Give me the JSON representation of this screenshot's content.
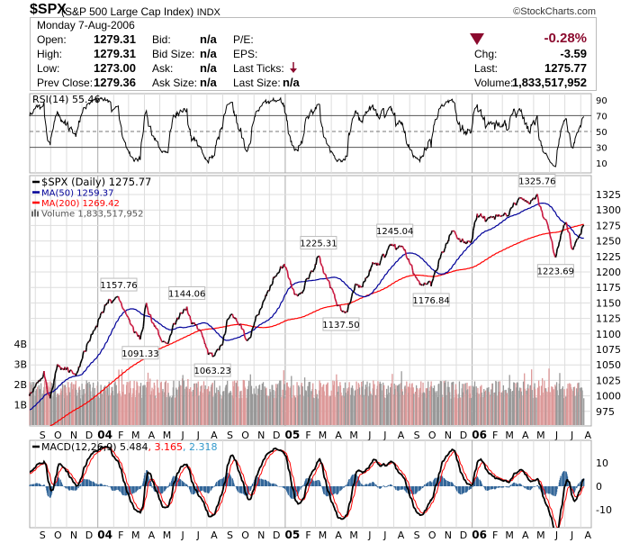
{
  "header": {
    "symbol": "$SPX",
    "name": "(S&P 500 Large Cap Index)",
    "exchange": "INDX",
    "copyright": "©StockCharts.com",
    "date": "Monday  7-Aug-2006",
    "open_label": "Open:",
    "open": "1279.31",
    "high_label": "High:",
    "high": "1279.31",
    "low_label": "Low:",
    "low": "1273.00",
    "prev_label": "Prev Close:",
    "prev": "1279.36",
    "bid_label": "Bid:",
    "bid": "n/a",
    "bidsize_label": "Bid Size:",
    "bidsize": "n/a",
    "ask_label": "Ask:",
    "ask": "n/a",
    "asksize_label": "Ask Size:",
    "asksize": "n/a",
    "pe_label": "P/E:",
    "eps_label": "EPS:",
    "ticks_label": "Last Ticks:",
    "lastsize_label": "Last Size:",
    "lastsize": "n/a",
    "pct_change": "-0.28%",
    "chg_label": "Chg:",
    "chg": "-3.59",
    "last_label": "Last:",
    "last": "1275.77",
    "volume_label": "Volume:",
    "volume": "1,833,517,952",
    "down_color": "#8b0a2e"
  },
  "chart_data": [
    {
      "type": "line",
      "panel": "RSI",
      "label": "RSI(14) 55.46",
      "y_ticks": [
        90,
        70,
        50,
        30,
        10
      ],
      "ylim": [
        0,
        100
      ]
    },
    {
      "type": "line",
      "panel": "price",
      "legend": [
        {
          "label": "$SPX (Daily) 1275.77",
          "color": "#000000"
        },
        {
          "label": "MA(50) 1259.37",
          "color": "#000099"
        },
        {
          "label": "MA(200) 1269.42",
          "color": "#ff0000"
        },
        {
          "label": "Volume 1,833,517,952",
          "color": "#888888"
        }
      ],
      "price_keypoints": [
        [
          "2003-08-21",
          1000
        ],
        [
          "2003-09-18",
          1040
        ],
        [
          "2003-09-30",
          996
        ],
        [
          "2003-10-15",
          1050
        ],
        [
          "2003-11-20",
          1035
        ],
        [
          "2003-12-31",
          1111
        ],
        [
          "2004-01-26",
          1155
        ],
        [
          "2004-02-11",
          1157.76
        ],
        [
          "2004-03-24",
          1091.33
        ],
        [
          "2004-04-05",
          1150
        ],
        [
          "2004-05-17",
          1084
        ],
        [
          "2004-06-23",
          1144.06
        ],
        [
          "2004-08-12",
          1063.23
        ],
        [
          "2004-09-10",
          1123
        ],
        [
          "2004-10-25",
          1094
        ],
        [
          "2004-12-30",
          1213
        ],
        [
          "2005-01-24",
          1163
        ],
        [
          "2005-03-07",
          1225.31
        ],
        [
          "2005-04-20",
          1137.5
        ],
        [
          "2005-06-22",
          1213
        ],
        [
          "2005-08-03",
          1245.04
        ],
        [
          "2005-10-13",
          1176.84
        ],
        [
          "2005-11-22",
          1265
        ],
        [
          "2005-12-30",
          1248
        ],
        [
          "2006-01-11",
          1294
        ],
        [
          "2006-02-24",
          1290
        ],
        [
          "2006-04-21",
          1311
        ],
        [
          "2006-05-08",
          1325.76
        ],
        [
          "2006-06-13",
          1223.69
        ],
        [
          "2006-07-03",
          1280
        ],
        [
          "2006-07-17",
          1236
        ],
        [
          "2006-08-07",
          1275.77
        ]
      ],
      "annotations": [
        {
          "date": "2004-02-11",
          "value": 1157.76,
          "label": "1157.76",
          "pos": "above"
        },
        {
          "date": "2004-03-24",
          "value": 1091.33,
          "label": "1091.33",
          "pos": "below"
        },
        {
          "date": "2004-06-23",
          "value": 1144.06,
          "label": "1144.06",
          "pos": "above"
        },
        {
          "date": "2004-08-12",
          "value": 1063.23,
          "label": "1063.23",
          "pos": "below"
        },
        {
          "date": "2005-03-07",
          "value": 1225.31,
          "label": "1225.31",
          "pos": "above"
        },
        {
          "date": "2005-04-20",
          "value": 1137.5,
          "label": "1137.50",
          "pos": "below"
        },
        {
          "date": "2005-08-03",
          "value": 1245.04,
          "label": "1245.04",
          "pos": "above"
        },
        {
          "date": "2005-10-13",
          "value": 1176.84,
          "label": "1176.84",
          "pos": "below"
        },
        {
          "date": "2006-05-08",
          "value": 1325.76,
          "label": "1325.76",
          "pos": "above"
        },
        {
          "date": "2006-06-13",
          "value": 1223.69,
          "label": "1223.69",
          "pos": "below"
        }
      ],
      "y_ticks": [
        1325,
        1300,
        1275,
        1250,
        1225,
        1200,
        1175,
        1150,
        1125,
        1100,
        1075,
        1050,
        1025,
        1000,
        975
      ],
      "volume_ticks": [
        "4B",
        "3B",
        "2B",
        "1B"
      ],
      "ylim": [
        950,
        1355
      ]
    },
    {
      "type": "line",
      "panel": "MACD",
      "label_main": "MACD(12,26,9) 5.484",
      "label_signal": ", 3.165",
      "label_hist": ", 2.318",
      "y_ticks": [
        10,
        0,
        -10
      ],
      "colors": {
        "macd": "#000000",
        "signal": "#ff0000",
        "histogram": "#336699"
      }
    }
  ],
  "x_axis": {
    "months": [
      "S",
      "O",
      "N",
      "D",
      "04",
      "F",
      "M",
      "A",
      "M",
      "J",
      "J",
      "A",
      "S",
      "O",
      "N",
      "D",
      "05",
      "F",
      "M",
      "A",
      "M",
      "J",
      "J",
      "A",
      "S",
      "O",
      "N",
      "D",
      "06",
      "F",
      "M",
      "A",
      "M",
      "J",
      "J",
      "A"
    ],
    "start": "2003-09"
  }
}
